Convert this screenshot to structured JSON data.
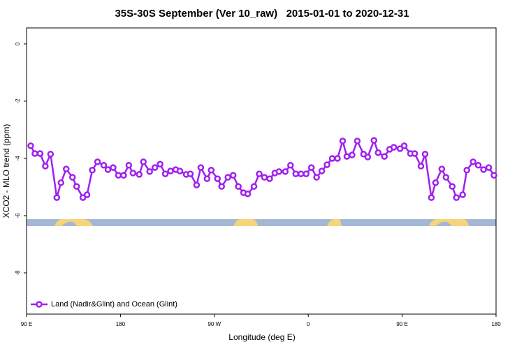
{
  "chart_data": {
    "type": "line",
    "title": "35S-30S September (Ver 10_raw)   2015-01-01 to 2020-12-31",
    "xlabel": "Longitude (deg E)",
    "ylabel": "XCO2 - MLO trend (ppm)",
    "xlim": [
      90,
      540
    ],
    "ylim": [
      -9.44,
      0.56
    ],
    "xticks": [
      {
        "value": 90,
        "label": "90 E"
      },
      180,
      {
        "value": 270,
        "label": "90 W"
      },
      {
        "value": 360,
        "label": "0"
      },
      {
        "value": 450,
        "label": "90 E"
      },
      {
        "value": 540,
        "label": "180"
      }
    ],
    "yticks": [
      0,
      -2,
      -4,
      -6,
      -8
    ],
    "legend": "bottom-left",
    "series": [
      {
        "name": "Land (Nadir&Glint) and Ocean (Glint)",
        "color": "#a020f0",
        "x": [
          94,
          98,
          103,
          108,
          113,
          119,
          123,
          128,
          134,
          138,
          144,
          148,
          153,
          158,
          164,
          168,
          173,
          178,
          183,
          188,
          192,
          198,
          202,
          208,
          213,
          218,
          223,
          228,
          233,
          237,
          243,
          247,
          253,
          257,
          263,
          267,
          273,
          277,
          283,
          288,
          293,
          298,
          302,
          308,
          313,
          318,
          323,
          328,
          332,
          338,
          343,
          348,
          353,
          358,
          363,
          368,
          373,
          378,
          383,
          388,
          393,
          397,
          402,
          407,
          413,
          417,
          423,
          427,
          433,
          438,
          442,
          448,
          452,
          458,
          462,
          468,
          472,
          478,
          482,
          488,
          492,
          498,
          502,
          508,
          512,
          518,
          523,
          528,
          533,
          538
        ],
        "values": [
          -3.56,
          -3.83,
          -3.83,
          -4.27,
          -3.85,
          -5.37,
          -4.85,
          -4.37,
          -4.66,
          -4.98,
          -5.37,
          -5.27,
          -4.41,
          -4.12,
          -4.24,
          -4.39,
          -4.32,
          -4.59,
          -4.59,
          -4.24,
          -4.51,
          -4.56,
          -4.12,
          -4.46,
          -4.32,
          -4.2,
          -4.54,
          -4.44,
          -4.39,
          -4.44,
          -4.56,
          -4.54,
          -4.93,
          -4.32,
          -4.71,
          -4.41,
          -4.71,
          -4.98,
          -4.66,
          -4.59,
          -4.98,
          -5.2,
          -5.24,
          -4.98,
          -4.54,
          -4.66,
          -4.71,
          -4.51,
          -4.46,
          -4.46,
          -4.24,
          -4.54,
          -4.54,
          -4.54,
          -4.32,
          -4.66,
          -4.44,
          -4.22,
          -4,
          -4,
          -3.39,
          -3.93,
          -3.88,
          -3.39,
          -3.85,
          -3.95,
          -3.37,
          -3.8,
          -3.93,
          -3.68,
          -3.61,
          -3.66,
          -3.56,
          -3.83,
          -3.83,
          -4.27,
          -3.85,
          -5.37,
          -4.85,
          -4.37,
          -4.66,
          -4.98,
          -5.37,
          -5.27,
          -4.41,
          -4.12,
          -4.24,
          -4.39,
          -4.32,
          -4.59
        ]
      }
    ]
  }
}
